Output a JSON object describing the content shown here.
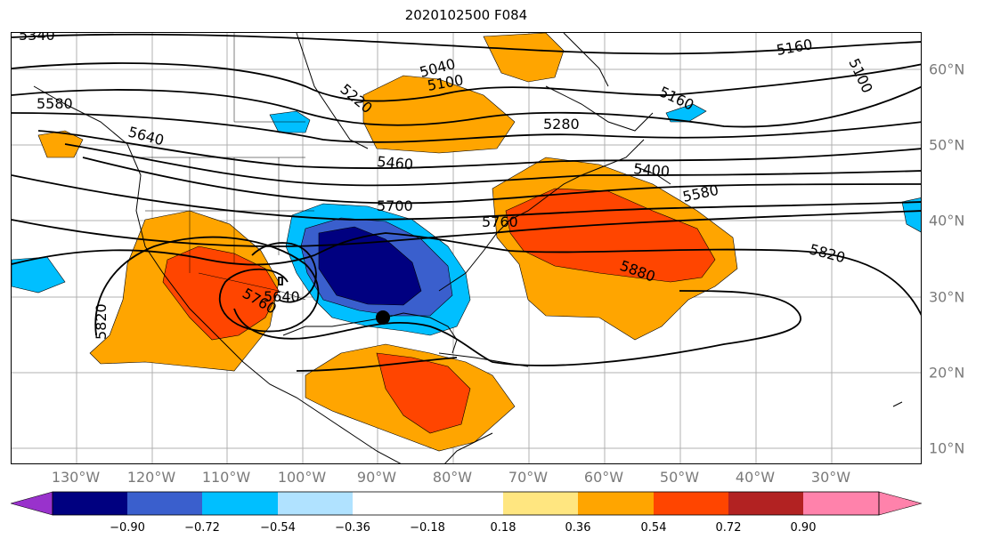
{
  "title": "2020102500 F084",
  "map": {
    "lon_labels": [
      "130°W",
      "120°W",
      "110°W",
      "100°W",
      "90°W",
      "80°W",
      "70°W",
      "60°W",
      "50°W",
      "40°W",
      "30°W"
    ],
    "lat_labels": [
      "60°N",
      "50°N",
      "40°N",
      "30°N",
      "20°N",
      "10°N"
    ],
    "contour_labels": [
      "5340",
      "5580",
      "5640",
      "5040",
      "5100",
      "5220",
      "5280",
      "5160",
      "5100",
      "5160",
      "5460",
      "5400",
      "5580",
      "5700",
      "5760",
      "5880",
      "5820",
      "5760",
      "5640",
      "5820"
    ],
    "marker": "black-dot"
  },
  "colorbar": {
    "ticks": [
      "−0.90",
      "−0.72",
      "−0.54",
      "−0.36",
      "−0.18",
      "0.18",
      "0.36",
      "0.54",
      "0.72",
      "0.90"
    ],
    "colors": [
      "#9932cc",
      "#000080",
      "#3a5fcd",
      "#00bfff",
      "#b0e2ff",
      "#ffffff",
      "#ffe680",
      "#ffa500",
      "#ff4500",
      "#b22222",
      "#ff82ab"
    ]
  }
}
